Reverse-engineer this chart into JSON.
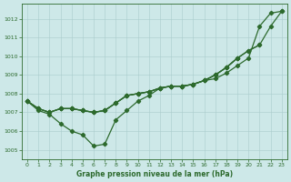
{
  "title": "Graphe pression niveau de la mer (hPa)",
  "bg_color": "#cde8e8",
  "grid_color": "#aacccc",
  "line_color": "#2d6a2d",
  "xlim": [
    -0.5,
    23.5
  ],
  "ylim": [
    1004.5,
    1012.8
  ],
  "yticks": [
    1005,
    1006,
    1007,
    1008,
    1009,
    1010,
    1011,
    1012
  ],
  "xticks": [
    0,
    1,
    2,
    3,
    4,
    5,
    6,
    7,
    8,
    9,
    10,
    11,
    12,
    13,
    14,
    15,
    16,
    17,
    18,
    19,
    20,
    21,
    22,
    23
  ],
  "line1_x": [
    0,
    1,
    2,
    3,
    4,
    5,
    6,
    7,
    8,
    9,
    10,
    11,
    12,
    13,
    14,
    15,
    16,
    17,
    18,
    19,
    20,
    21,
    22,
    23
  ],
  "line1_y": [
    1007.6,
    1007.1,
    1006.9,
    1006.4,
    1006.0,
    1005.8,
    1005.2,
    1005.3,
    1006.6,
    1007.1,
    1007.6,
    1007.9,
    1008.3,
    1008.4,
    1008.4,
    1008.5,
    1008.7,
    1008.8,
    1009.1,
    1009.5,
    1009.9,
    1011.6,
    1012.3,
    1012.4
  ],
  "line2_x": [
    0,
    1,
    2,
    3,
    4,
    5,
    6,
    7,
    8,
    9,
    10,
    11,
    12,
    13,
    14,
    15,
    16,
    17,
    18,
    19,
    20,
    21
  ],
  "line2_y": [
    1007.6,
    1007.2,
    1007.0,
    1007.2,
    1007.2,
    1007.1,
    1007.0,
    1007.1,
    1007.5,
    1007.9,
    1008.0,
    1008.1,
    1008.3,
    1008.4,
    1008.4,
    1008.5,
    1008.7,
    1009.0,
    1009.4,
    1009.9,
    1010.3,
    1010.6
  ],
  "line3_x": [
    0,
    1,
    2,
    3,
    4,
    5,
    6,
    7,
    8,
    9,
    10,
    11,
    12,
    13,
    14,
    15,
    16,
    17,
    18,
    19,
    20,
    21,
    22,
    23
  ],
  "line3_y": [
    1007.6,
    1007.2,
    1007.0,
    1007.2,
    1007.2,
    1007.1,
    1007.0,
    1007.1,
    1007.5,
    1007.9,
    1008.0,
    1008.1,
    1008.3,
    1008.4,
    1008.4,
    1008.5,
    1008.7,
    1009.0,
    1009.4,
    1009.9,
    1010.3,
    1010.6,
    1011.6,
    1012.4
  ],
  "line4_x": [
    0,
    1,
    2,
    3,
    4,
    5,
    6,
    7,
    8,
    9,
    10,
    11,
    12,
    13,
    14,
    15,
    16,
    17,
    18,
    19
  ],
  "line4_y": [
    1007.6,
    1007.2,
    1007.0,
    1007.2,
    1007.2,
    1007.1,
    1007.0,
    1007.1,
    1007.5,
    1007.9,
    1008.0,
    1008.1,
    1008.3,
    1008.4,
    1008.4,
    1008.5,
    1008.7,
    1009.0,
    1009.4,
    1009.9
  ]
}
